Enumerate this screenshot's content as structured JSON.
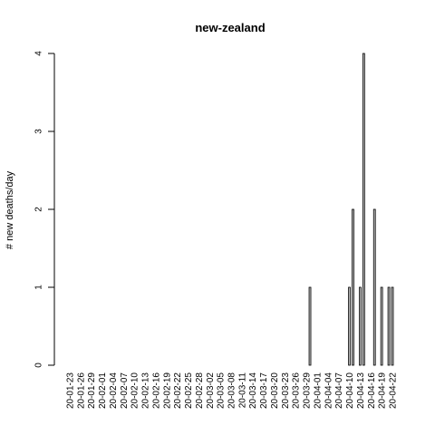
{
  "chart_data": {
    "type": "bar",
    "title": "new-zealand",
    "xlabel": "",
    "ylabel": "# new deaths/day",
    "ylim": [
      0,
      4
    ],
    "yticks": [
      0,
      1,
      2,
      3,
      4
    ],
    "start_date": "2020-01-23",
    "categories": [
      "20-01-23",
      "20-01-24",
      "20-01-25",
      "20-01-26",
      "20-01-27",
      "20-01-28",
      "20-01-29",
      "20-01-30",
      "20-01-31",
      "20-02-01",
      "20-02-02",
      "20-02-03",
      "20-02-04",
      "20-02-05",
      "20-02-06",
      "20-02-07",
      "20-02-08",
      "20-02-09",
      "20-02-10",
      "20-02-11",
      "20-02-12",
      "20-02-13",
      "20-02-14",
      "20-02-15",
      "20-02-16",
      "20-02-17",
      "20-02-18",
      "20-02-19",
      "20-02-20",
      "20-02-21",
      "20-02-22",
      "20-02-23",
      "20-02-24",
      "20-02-25",
      "20-02-26",
      "20-02-27",
      "20-02-28",
      "20-02-29",
      "20-03-01",
      "20-03-02",
      "20-03-03",
      "20-03-04",
      "20-03-05",
      "20-03-06",
      "20-03-07",
      "20-03-08",
      "20-03-09",
      "20-03-10",
      "20-03-11",
      "20-03-12",
      "20-03-13",
      "20-03-14",
      "20-03-15",
      "20-03-16",
      "20-03-17",
      "20-03-18",
      "20-03-19",
      "20-03-20",
      "20-03-21",
      "20-03-22",
      "20-03-23",
      "20-03-24",
      "20-03-25",
      "20-03-26",
      "20-03-27",
      "20-03-28",
      "20-03-29",
      "20-03-30",
      "20-03-31",
      "20-04-01",
      "20-04-02",
      "20-04-03",
      "20-04-04",
      "20-04-05",
      "20-04-06",
      "20-04-07",
      "20-04-08",
      "20-04-09",
      "20-04-10",
      "20-04-11",
      "20-04-12",
      "20-04-13",
      "20-04-14",
      "20-04-15",
      "20-04-16",
      "20-04-17",
      "20-04-18",
      "20-04-19",
      "20-04-20",
      "20-04-21",
      "20-04-22"
    ],
    "values": [
      0,
      0,
      0,
      0,
      0,
      0,
      0,
      0,
      0,
      0,
      0,
      0,
      0,
      0,
      0,
      0,
      0,
      0,
      0,
      0,
      0,
      0,
      0,
      0,
      0,
      0,
      0,
      0,
      0,
      0,
      0,
      0,
      0,
      0,
      0,
      0,
      0,
      0,
      0,
      0,
      0,
      0,
      0,
      0,
      0,
      0,
      0,
      0,
      0,
      0,
      0,
      0,
      0,
      0,
      0,
      0,
      0,
      0,
      0,
      0,
      0,
      0,
      0,
      0,
      0,
      0,
      0,
      1,
      0,
      0,
      0,
      0,
      0,
      0,
      0,
      0,
      0,
      0,
      1,
      2,
      0,
      1,
      4,
      0,
      0,
      2,
      0,
      1,
      0,
      1,
      1
    ],
    "visible_tick_labels": [
      "20-01-23",
      "20-01-26",
      "20-01-29",
      "20-02-01",
      "20-02-04",
      "20-02-07",
      "20-02-10",
      "20-02-13",
      "20-02-16",
      "20-02-19",
      "20-02-22",
      "20-02-25",
      "20-02-28",
      "20-03-02",
      "20-03-05",
      "20-03-08",
      "20-03-11",
      "20-03-14",
      "20-03-17",
      "20-03-20",
      "20-03-23",
      "20-03-26",
      "20-03-29",
      "20-04-01",
      "20-04-04",
      "20-04-07",
      "20-04-10",
      "20-04-13",
      "20-04-16",
      "20-04-19",
      "20-04-22"
    ],
    "grid": false,
    "legend": "none",
    "bar_color": "#bebebe",
    "bar_border": "#000000"
  }
}
